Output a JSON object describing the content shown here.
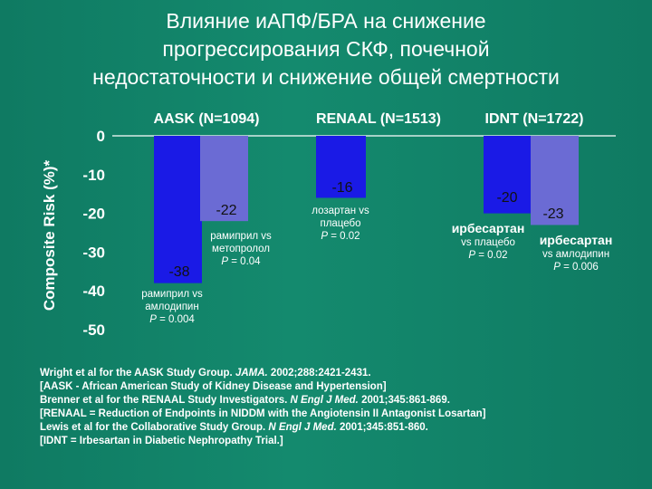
{
  "title_lines": [
    "Влияние иАПФ/БРА на снижение",
    "прогрессирования СКФ, почечной",
    "недостаточности и снижение общей смертности"
  ],
  "colors": {
    "bar_primary": "#1a1ae6",
    "bar_secondary": "#6b6bd4",
    "background": "#148a6e"
  },
  "chart_data": {
    "type": "bar",
    "ylabel": "Composite Risk (%)*",
    "ylim": [
      -50,
      0
    ],
    "yticks": [
      0,
      -10,
      -20,
      -30,
      -40,
      -50
    ],
    "groups": [
      {
        "label": "AASK (N=1094)",
        "bars": [
          {
            "value": -38,
            "label": "-38",
            "series": "primary",
            "note": [
              "рамиприл vs",
              "амлодипин",
              "P = 0.004"
            ]
          },
          {
            "value": -22,
            "label": "-22",
            "series": "secondary",
            "note": [
              "рамиприл vs",
              "метопролол",
              "P = 0.04"
            ]
          }
        ]
      },
      {
        "label": "RENAAL (N=1513)",
        "bars": [
          {
            "value": -16,
            "label": "-16",
            "series": "primary",
            "note": [
              "лозартан vs",
              "плацебо",
              "P = 0.02"
            ]
          }
        ]
      },
      {
        "label": "IDNT (N=1722)",
        "bars": [
          {
            "value": -20,
            "label": "-20",
            "series": "primary",
            "note": [
              "ирбесартан",
              "vs плацебо",
              "P = 0.02"
            ]
          },
          {
            "value": -23,
            "label": "-23",
            "series": "secondary",
            "note": [
              "ирбесартан",
              "vs амлодипин",
              "P = 0.006"
            ]
          }
        ]
      }
    ]
  },
  "references": [
    [
      {
        "t": "Wright et al for the AASK Study Group. "
      },
      {
        "t": "JAMA.",
        "i": true
      },
      {
        "t": " 2002;288:2421-2431."
      }
    ],
    [
      {
        "t": "[AASK  - African American Study of Kidney Disease and Hypertension]"
      }
    ],
    [
      {
        "t": "Brenner et al for the RENAAL Study Investigators. "
      },
      {
        "t": "N Engl J Med.",
        "i": true
      },
      {
        "t": " 2001;345:861-869."
      }
    ],
    [
      {
        "t": "[RENAAL = Reduction of Endpoints in NIDDM with the Angiotensin II Antagonist Losartan]"
      }
    ],
    [
      {
        "t": "Lewis et al for the Collaborative Study Group. "
      },
      {
        "t": "N Engl J Med.",
        "i": true
      },
      {
        "t": " 2001;345:851-860."
      }
    ],
    [
      {
        "t": "[IDNT = Irbesartan in Diabetic Nephropathy Trial.]"
      }
    ]
  ]
}
